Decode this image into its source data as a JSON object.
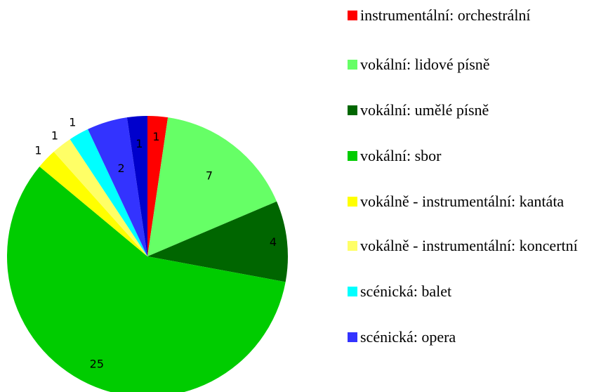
{
  "chart_data": {
    "type": "pie",
    "categories": [
      "instrumentální: orchestrální",
      "vokální: lidové písně",
      "vokální: umělé písně",
      "vokální: sbor",
      "vokálně - instrumentální: kantáta",
      "vokálně - instrumentální: koncertní",
      "scénická: balet",
      "scénická: opera",
      null
    ],
    "values": [
      1,
      7,
      4,
      25,
      1,
      1,
      1,
      2,
      1
    ],
    "colors": [
      "#ff0000",
      "#66ff66",
      "#006600",
      "#00cc00",
      "#ffff00",
      "#ffff66",
      "#00ffff",
      "#3333ff",
      "#0000cc"
    ]
  }
}
